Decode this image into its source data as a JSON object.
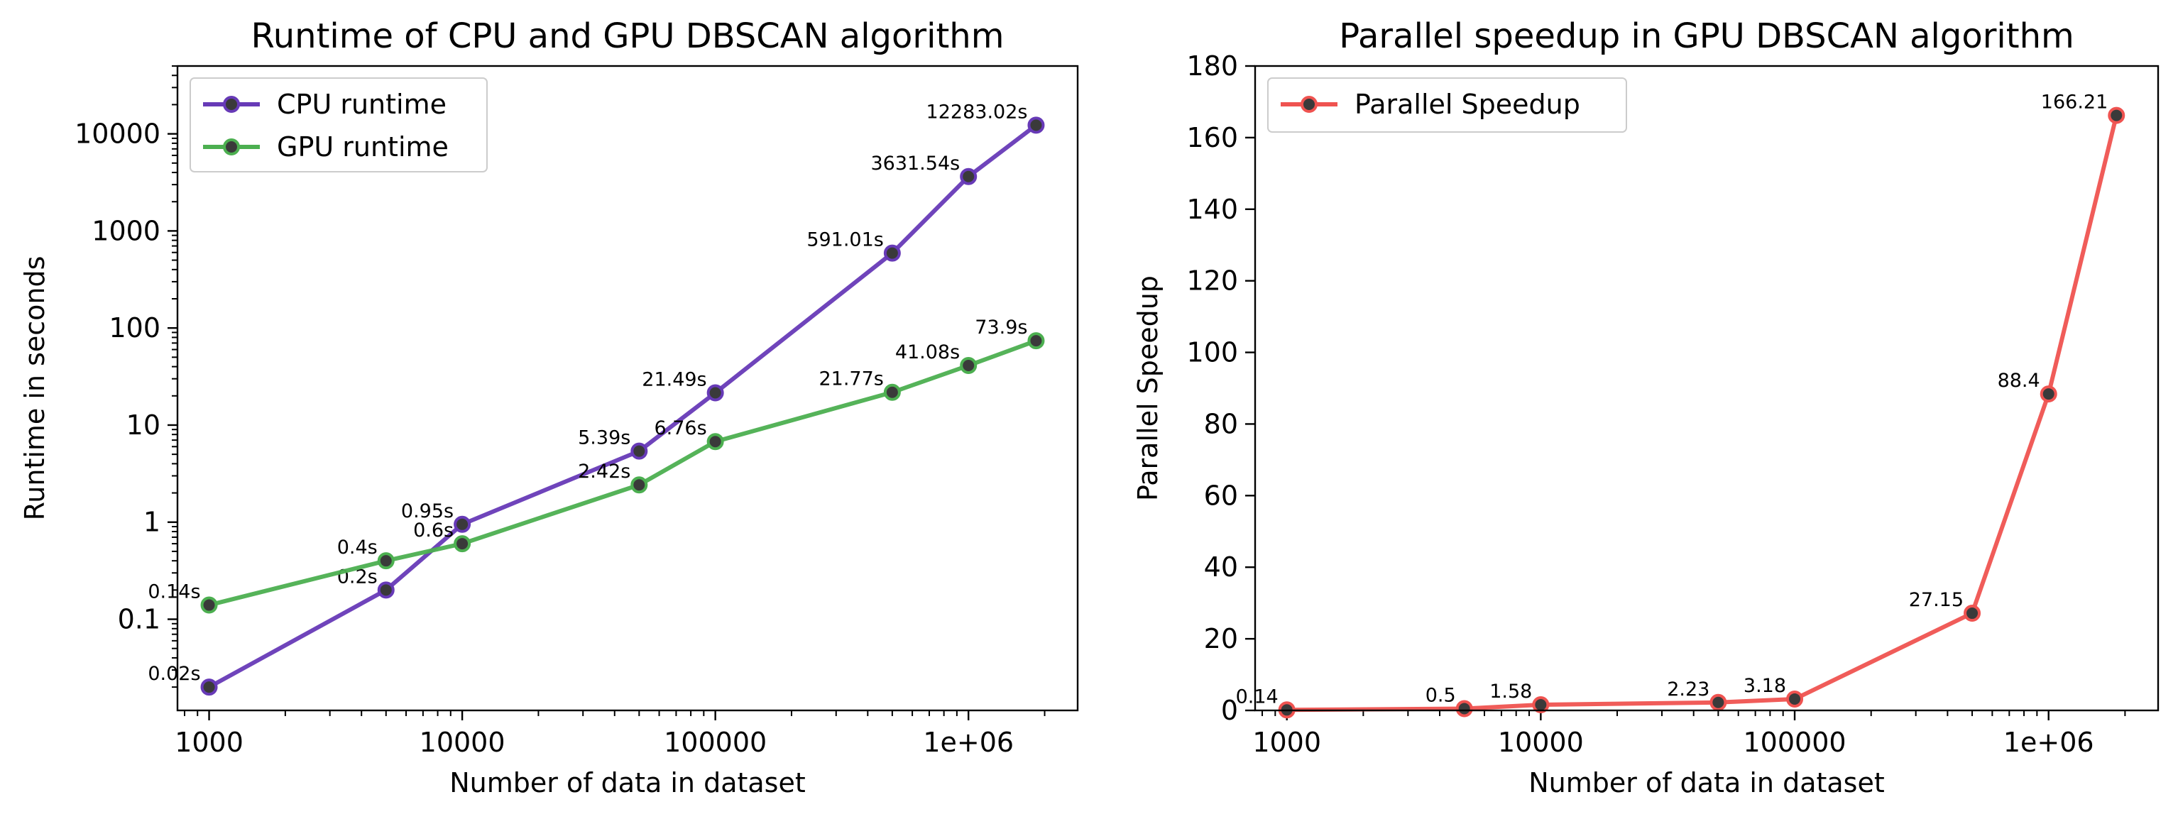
{
  "chart_data": [
    {
      "type": "line",
      "title": "Runtime of CPU and GPU DBSCAN algorithm",
      "xlabel": "Number of data in dataset",
      "ylabel": "Runtime in seconds",
      "xscale": "log",
      "yscale": "log",
      "xlim": [
        750,
        2700000
      ],
      "ylim": [
        0.0115,
        50000
      ],
      "xticks": [
        {
          "value": 1000,
          "label": "1000"
        },
        {
          "value": 10000,
          "label": "10000"
        },
        {
          "value": 100000,
          "label": "100000"
        },
        {
          "value": 1000000,
          "label": "1e+06"
        }
      ],
      "yticks": [
        {
          "value": 0.1,
          "label": "0.1"
        },
        {
          "value": 1,
          "label": "1"
        },
        {
          "value": 10,
          "label": "10"
        },
        {
          "value": 100,
          "label": "100"
        },
        {
          "value": 1000,
          "label": "1000"
        },
        {
          "value": 10000,
          "label": "10000"
        }
      ],
      "grid": false,
      "legend_position": "top-left",
      "x": [
        1000,
        5000,
        10000,
        50000,
        100000,
        500000,
        1000000,
        1850000
      ],
      "series": [
        {
          "name": "CPU runtime",
          "color": "#673ab7",
          "values": [
            0.02,
            0.2,
            0.95,
            5.39,
            21.49,
            591.01,
            3631.54,
            12283.02
          ],
          "labels": [
            "0.02s",
            "0.2s",
            "0.95s",
            "5.39s",
            "21.49s",
            "591.01s",
            "3631.54s",
            "12283.02s"
          ]
        },
        {
          "name": "GPU runtime",
          "color": "#4caf50",
          "values": [
            0.14,
            0.4,
            0.6,
            2.42,
            6.76,
            21.77,
            41.08,
            73.9
          ],
          "labels": [
            "0.14s",
            "0.4s",
            "0.6s",
            "2.42s",
            "6.76s",
            "21.77s",
            "41.08s",
            "73.9s"
          ]
        }
      ]
    },
    {
      "type": "line",
      "title": "Parallel speedup in GPU DBSCAN algorithm",
      "xlabel": "Number of data in dataset",
      "ylabel": "Parallel Speedup",
      "xscale": "log",
      "yscale": "linear",
      "xlim": [
        750,
        2700000
      ],
      "ylim": [
        0,
        180
      ],
      "xticks": [
        {
          "value": 1000,
          "label": "1000"
        },
        {
          "value": 10000,
          "label": "10000"
        },
        {
          "value": 100000,
          "label": "100000"
        },
        {
          "value": 1000000,
          "label": "1e+06"
        }
      ],
      "yticks": [
        {
          "value": 0,
          "label": "0"
        },
        {
          "value": 20,
          "label": "20"
        },
        {
          "value": 40,
          "label": "40"
        },
        {
          "value": 60,
          "label": "60"
        },
        {
          "value": 80,
          "label": "80"
        },
        {
          "value": 100,
          "label": "100"
        },
        {
          "value": 120,
          "label": "120"
        },
        {
          "value": 140,
          "label": "140"
        },
        {
          "value": 160,
          "label": "160"
        },
        {
          "value": 180,
          "label": "180"
        }
      ],
      "grid": false,
      "legend_position": "top-left",
      "x": [
        1000,
        5000,
        10000,
        50000,
        100000,
        500000,
        1000000,
        1850000
      ],
      "series": [
        {
          "name": "Parallel Speedup",
          "color": "#ef5350",
          "values": [
            0.14,
            0.5,
            1.58,
            2.23,
            3.18,
            27.15,
            88.4,
            166.21
          ],
          "labels": [
            "0.14",
            "0.5",
            "1.58",
            "2.23",
            "3.18",
            "27.15",
            "88.4",
            "166.21"
          ]
        }
      ]
    }
  ]
}
